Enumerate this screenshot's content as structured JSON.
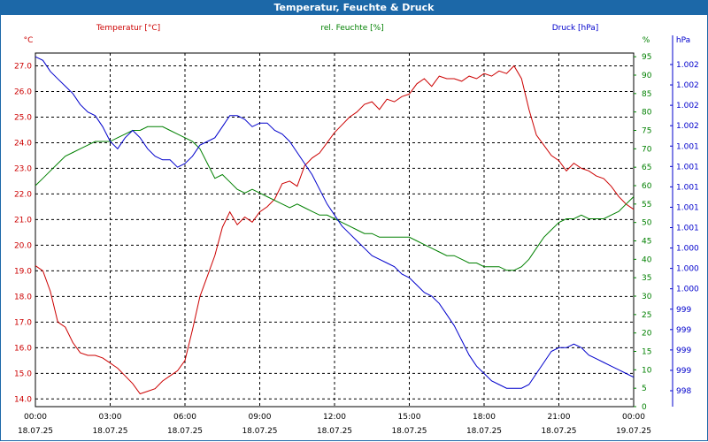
{
  "window": {
    "title": "Temperatur, Feuchte & Druck"
  },
  "colors": {
    "title_bar": "#1c68a8",
    "temperature": "#cc0000",
    "humidity": "#008000",
    "pressure": "#0000cc",
    "grid": "#000000"
  },
  "chart_data": {
    "type": "line",
    "title": "Temperatur, Feuchte & Druck",
    "grid": true,
    "x_ticks": [
      {
        "time": "00:00",
        "date": "18.07.25"
      },
      {
        "time": "03:00",
        "date": "18.07.25"
      },
      {
        "time": "06:00",
        "date": "18.07.25"
      },
      {
        "time": "09:00",
        "date": "18.07.25"
      },
      {
        "time": "12:00",
        "date": "18.07.25"
      },
      {
        "time": "15:00",
        "date": "18.07.25"
      },
      {
        "time": "18:00",
        "date": "18.07.25"
      },
      {
        "time": "21:00",
        "date": "18.07.25"
      },
      {
        "time": "00:00",
        "date": "19.07.25"
      }
    ],
    "axes": {
      "left": {
        "unit": "°C",
        "ylim": [
          13.7,
          27.5
        ],
        "ticks": [
          "14.0",
          "15.0",
          "16.0",
          "17.0",
          "18.0",
          "19.0",
          "20.0",
          "21.0",
          "22.0",
          "23.0",
          "24.0",
          "25.0",
          "26.0",
          "27.0"
        ]
      },
      "right1": {
        "unit": "%",
        "ylim": [
          0,
          96
        ],
        "ticks": [
          "0",
          "5",
          "10",
          "15",
          "20",
          "25",
          "30",
          "35",
          "40",
          "45",
          "50",
          "55",
          "60",
          "65",
          "70",
          "75",
          "80",
          "85",
          "90",
          "95"
        ]
      },
      "right2": {
        "unit": "hPa",
        "ticks": [
          "998",
          "999",
          "999",
          "999",
          "999",
          "1.000",
          "1.000",
          "1.000",
          "1.001",
          "1.001",
          "1.001",
          "1.001",
          "1.001",
          "1.002",
          "1.002",
          "1.002",
          "1.002"
        ]
      }
    },
    "series": [
      {
        "name": "Temperatur [°C]",
        "axis": "left",
        "x": [
          0,
          0.3,
          0.6,
          0.9,
          1.2,
          1.5,
          1.8,
          2.1,
          2.4,
          2.7,
          3.0,
          3.3,
          3.6,
          3.9,
          4.2,
          4.5,
          4.8,
          5.1,
          5.4,
          5.7,
          6.0,
          6.3,
          6.6,
          6.9,
          7.2,
          7.5,
          7.8,
          8.1,
          8.4,
          8.7,
          9.0,
          9.3,
          9.6,
          9.9,
          10.2,
          10.5,
          10.8,
          11.1,
          11.4,
          11.7,
          12.0,
          12.3,
          12.6,
          12.9,
          13.2,
          13.5,
          13.8,
          14.1,
          14.4,
          14.7,
          15.0,
          15.3,
          15.6,
          15.9,
          16.2,
          16.5,
          16.8,
          17.1,
          17.4,
          17.7,
          18.0,
          18.3,
          18.6,
          18.9,
          19.2,
          19.5,
          19.8,
          20.1,
          20.4,
          20.7,
          21.0,
          21.3,
          21.6,
          21.9,
          22.2,
          22.5,
          22.8,
          23.1,
          23.4,
          23.7,
          24.0
        ],
        "values": [
          19.2,
          19.0,
          18.2,
          17.0,
          16.8,
          16.2,
          15.8,
          15.7,
          15.7,
          15.6,
          15.4,
          15.2,
          14.9,
          14.6,
          14.2,
          14.3,
          14.4,
          14.7,
          14.9,
          15.1,
          15.5,
          16.7,
          18.0,
          18.8,
          19.6,
          20.7,
          21.3,
          20.8,
          21.1,
          20.9,
          21.3,
          21.5,
          21.8,
          22.4,
          22.5,
          22.3,
          23.1,
          23.4,
          23.6,
          24.0,
          24.4,
          24.7,
          25.0,
          25.2,
          25.5,
          25.6,
          25.3,
          25.7,
          25.6,
          25.8,
          25.9,
          26.3,
          26.5,
          26.2,
          26.6,
          26.5,
          26.5,
          26.4,
          26.6,
          26.5,
          26.7,
          26.6,
          26.8,
          26.7,
          27.0,
          26.5,
          25.3,
          24.3,
          23.9,
          23.5,
          23.3,
          22.9,
          23.2,
          23.0,
          22.9,
          22.7,
          22.6,
          22.3,
          21.9,
          21.6,
          21.4
        ]
      },
      {
        "name": "rel. Feuchte [%]",
        "axis": "right1",
        "x": [
          0,
          0.3,
          0.6,
          0.9,
          1.2,
          1.5,
          1.8,
          2.1,
          2.4,
          2.7,
          3.0,
          3.3,
          3.6,
          3.9,
          4.2,
          4.5,
          4.8,
          5.1,
          5.4,
          5.7,
          6.0,
          6.3,
          6.6,
          6.9,
          7.2,
          7.5,
          7.8,
          8.1,
          8.4,
          8.7,
          9.0,
          9.3,
          9.6,
          9.9,
          10.2,
          10.5,
          10.8,
          11.1,
          11.4,
          11.7,
          12.0,
          12.3,
          12.6,
          12.9,
          13.2,
          13.5,
          13.8,
          14.1,
          14.4,
          14.7,
          15.0,
          15.3,
          15.6,
          15.9,
          16.2,
          16.5,
          16.8,
          17.1,
          17.4,
          17.7,
          18.0,
          18.3,
          18.6,
          18.9,
          19.2,
          19.5,
          19.8,
          20.1,
          20.4,
          20.7,
          21.0,
          21.3,
          21.6,
          21.9,
          22.2,
          22.5,
          22.8,
          23.1,
          23.4,
          23.7,
          24.0
        ],
        "values": [
          60,
          62,
          64,
          66,
          68,
          69,
          70,
          71,
          72,
          72,
          72,
          73,
          74,
          75,
          75,
          76,
          76,
          76,
          75,
          74,
          73,
          72,
          70,
          66,
          62,
          63,
          61,
          59,
          58,
          59,
          58,
          57,
          56,
          55,
          54,
          55,
          54,
          53,
          52,
          52,
          51,
          50,
          49,
          48,
          47,
          47,
          46,
          46,
          46,
          46,
          46,
          45,
          44,
          43,
          42,
          41,
          41,
          40,
          39,
          39,
          38,
          38,
          38,
          37,
          37,
          38,
          40,
          43,
          46,
          48,
          50,
          51,
          51,
          52,
          51,
          51,
          51,
          52,
          53,
          55,
          57
        ]
      },
      {
        "name": "Druck [hPa]",
        "axis": "right2",
        "x": [
          0,
          0.3,
          0.6,
          0.9,
          1.2,
          1.5,
          1.8,
          2.1,
          2.4,
          2.7,
          3.0,
          3.3,
          3.6,
          3.9,
          4.2,
          4.5,
          4.8,
          5.1,
          5.4,
          5.7,
          6.0,
          6.3,
          6.6,
          6.9,
          7.2,
          7.5,
          7.8,
          8.1,
          8.4,
          8.7,
          9.0,
          9.3,
          9.6,
          9.9,
          10.2,
          10.5,
          10.8,
          11.1,
          11.4,
          11.7,
          12.0,
          12.3,
          12.6,
          12.9,
          13.2,
          13.5,
          13.8,
          14.1,
          14.4,
          14.7,
          15.0,
          15.3,
          15.6,
          15.9,
          16.2,
          16.5,
          16.8,
          17.1,
          17.4,
          17.7,
          18.0,
          18.3,
          18.6,
          18.9,
          19.2,
          19.5,
          19.8,
          20.1,
          20.4,
          20.7,
          21.0,
          21.3,
          21.6,
          21.9,
          22.2,
          22.5,
          22.8,
          23.1,
          23.4,
          23.7,
          24.0
        ],
        "values": [
          95,
          94,
          91,
          89,
          87,
          85,
          82,
          80,
          79,
          76,
          72,
          70,
          73,
          75,
          73,
          70,
          68,
          67,
          67,
          65,
          66,
          68,
          71,
          72,
          73,
          76,
          79,
          79,
          78,
          76,
          77,
          77,
          75,
          74,
          72,
          69,
          66,
          63,
          59,
          55,
          52,
          49,
          47,
          45,
          43,
          41,
          40,
          39,
          38,
          36,
          35,
          33,
          31,
          30,
          28,
          25,
          22,
          18,
          14,
          11,
          9,
          7,
          6,
          5,
          5,
          5,
          6,
          9,
          12,
          15,
          16,
          16,
          17,
          16,
          14,
          13,
          12,
          11,
          10,
          9,
          8
        ]
      }
    ]
  }
}
